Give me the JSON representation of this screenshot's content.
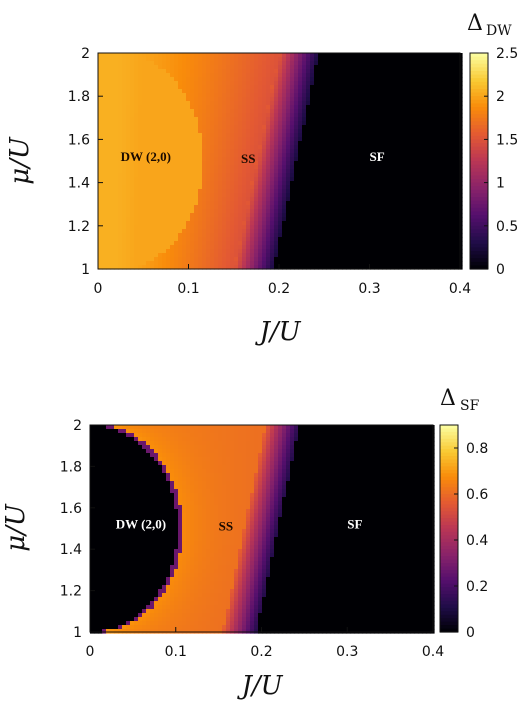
{
  "chart_data": [
    {
      "type": "heatmap",
      "title": "",
      "xlabel": "J/U",
      "ylabel": "μ/U",
      "xlim": [
        0,
        0.4
      ],
      "ylim": [
        1,
        2
      ],
      "x_ticks": [
        "0",
        "0.1",
        "0.2",
        "0.3",
        "0.4"
      ],
      "y_ticks": [
        "1",
        "1.2",
        "1.4",
        "1.6",
        "1.8",
        "2"
      ],
      "colorbar": {
        "title": "Δ",
        "subscript": "DW",
        "range": [
          0,
          2.5
        ],
        "ticks": [
          "0",
          "0.5",
          "1",
          "1.5",
          "2",
          "2.5"
        ]
      },
      "regions": [
        {
          "label": "DW (2,0)",
          "x": 0.025,
          "y": 1.5,
          "color": "#1a0a00"
        },
        {
          "label": "SS",
          "x": 0.158,
          "y": 1.49,
          "color": "#1a0a00"
        },
        {
          "label": "SF",
          "x": 0.3,
          "y": 1.5,
          "color": "#ffffff"
        }
      ],
      "boundaries": {
        "dw_ss": "smooth crossover, DW(2,0) is a constant plateau ~2.0",
        "ss_sf_at_mu1": 0.19,
        "ss_sf_at_mu2": 0.24
      }
    },
    {
      "type": "heatmap",
      "title": "",
      "xlabel": "J/U",
      "ylabel": "μ/U",
      "xlim": [
        0,
        0.4
      ],
      "ylim": [
        1,
        2
      ],
      "x_ticks": [
        "0",
        "0.1",
        "0.2",
        "0.3",
        "0.4"
      ],
      "y_ticks": [
        "1",
        "1.2",
        "1.4",
        "1.6",
        "1.8",
        "2"
      ],
      "colorbar": {
        "title": "Δ",
        "subscript": "SF",
        "range": [
          0,
          0.9
        ],
        "ticks": [
          "0",
          "0.2",
          "0.4",
          "0.6",
          "0.8"
        ]
      },
      "regions": [
        {
          "label": "DW (2,0)",
          "x": 0.03,
          "y": 1.5,
          "color": "#ffffff"
        },
        {
          "label": "SS",
          "x": 0.15,
          "y": 1.49,
          "color": "#1a0a00"
        },
        {
          "label": "SF",
          "x": 0.3,
          "y": 1.5,
          "color": "#ffffff"
        }
      ],
      "boundaries": {
        "dw_lobe_tip": {
          "x": 0.102,
          "y": 1.5
        },
        "ss_sf_at_mu1": 0.19,
        "ss_sf_at_mu2": 0.24
      }
    }
  ]
}
